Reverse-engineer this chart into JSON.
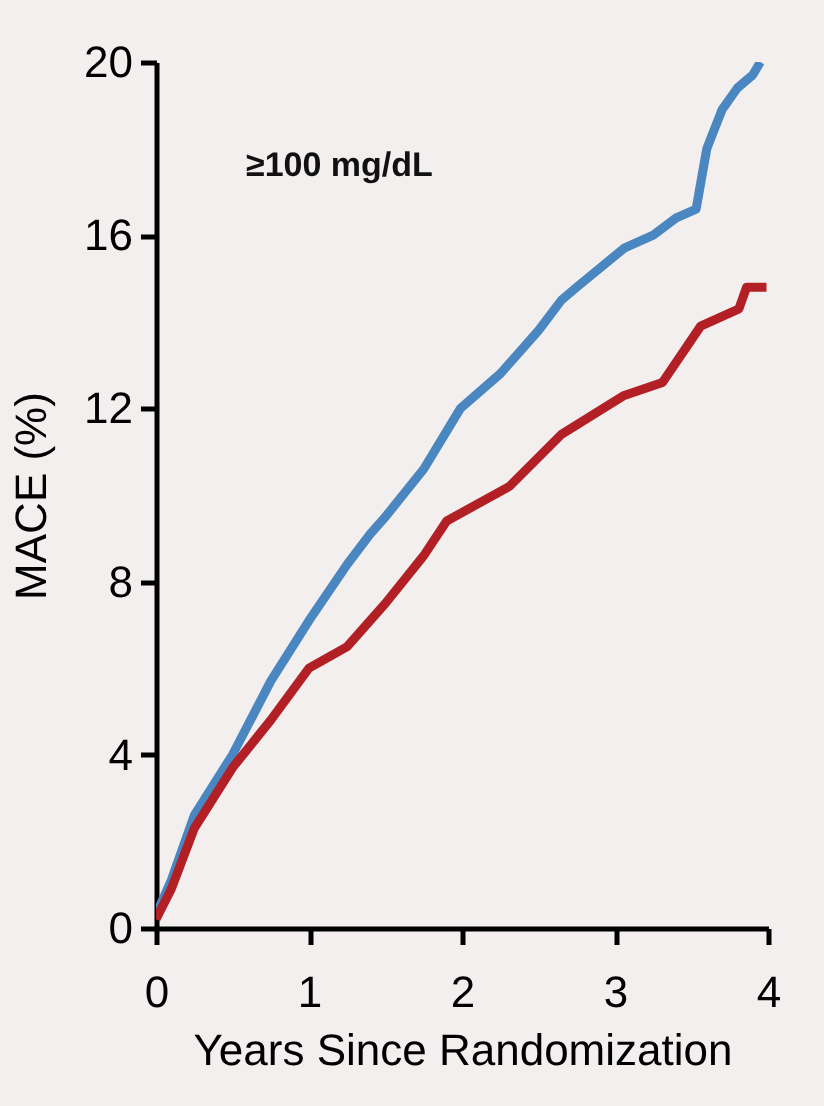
{
  "chart_data": {
    "type": "line",
    "xlabel": "Years Since Randomization",
    "ylabel": "MACE (%)",
    "annotations": [
      "≥100 mg/dL"
    ],
    "xlim": [
      0,
      4
    ],
    "xticks": [
      0,
      1,
      2,
      3,
      4
    ],
    "ylim": [
      0,
      20
    ],
    "yticks": [
      0,
      4,
      8,
      12,
      16,
      20
    ],
    "line_style": "solid",
    "marker": "none",
    "series": [
      {
        "color": "#4a86c0",
        "x": [
          0,
          0.1,
          0.25,
          0.5,
          0.75,
          1.0,
          1.25,
          1.4,
          1.5,
          1.75,
          1.99,
          2.25,
          2.5,
          2.65,
          2.75,
          3.06,
          3.25,
          3.4,
          3.53,
          3.55,
          3.6,
          3.7,
          3.8,
          3.9,
          3.95
        ],
        "values": [
          0.3,
          1.1,
          2.6,
          4.0,
          5.7,
          7.1,
          8.4,
          9.1,
          9.5,
          10.6,
          12.0,
          12.8,
          13.8,
          14.5,
          14.8,
          15.7,
          16.0,
          16.4,
          16.6,
          17.0,
          18.0,
          18.9,
          19.4,
          19.7,
          20
        ]
      },
      {
        "color": "#b22025",
        "x": [
          0,
          0.1,
          0.25,
          0.5,
          0.75,
          1.0,
          1.25,
          1.5,
          1.75,
          1.9,
          2.31,
          2.65,
          3.06,
          3.31,
          3.56,
          3.81,
          3.86,
          3.99
        ],
        "values": [
          0.2,
          0.9,
          2.3,
          3.7,
          4.8,
          6.0,
          6.5,
          7.5,
          8.6,
          9.4,
          10.2,
          11.4,
          12.3,
          12.6,
          13.9,
          14.3,
          14.8,
          14.8
        ]
      }
    ]
  }
}
